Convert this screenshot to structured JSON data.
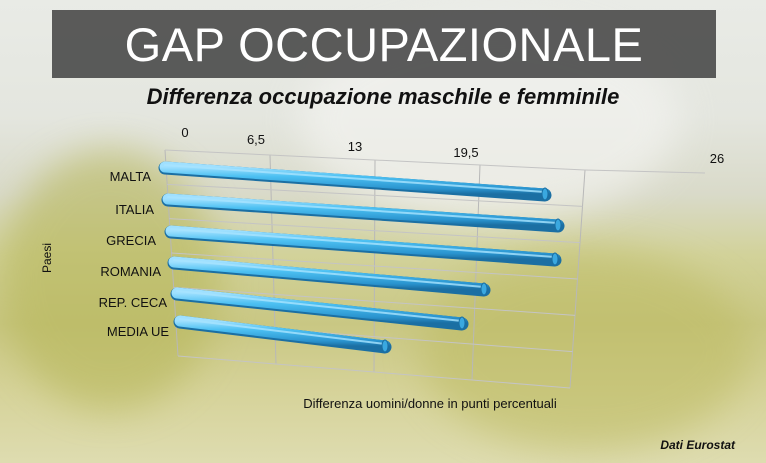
{
  "title": "GAP OCCUPAZIONALE",
  "subtitle": "Differenza occupazione maschile e femminile",
  "source": "Dati Eurostat",
  "chart_data": {
    "type": "bar",
    "orientation": "horizontal",
    "style": "3d-cylinder",
    "bar_color": "#3bb3ea",
    "categories": [
      "MALTA",
      "ITALIA",
      "GRECIA",
      "ROMANIA",
      "REP. CECA",
      "MEDIA UE"
    ],
    "values": [
      24.0,
      19.4,
      19.3,
      16.5,
      15.1,
      10.6
    ],
    "xlabel": "Differenza uomini/donne in punti percentuali",
    "ylabel": "Paesi",
    "xlim": [
      0,
      26
    ],
    "xticks": [
      "0",
      "6,5",
      "13",
      "19,5",
      "26"
    ],
    "xtick_values": [
      0,
      6.5,
      13,
      19.5,
      26
    ],
    "grid": true
  }
}
